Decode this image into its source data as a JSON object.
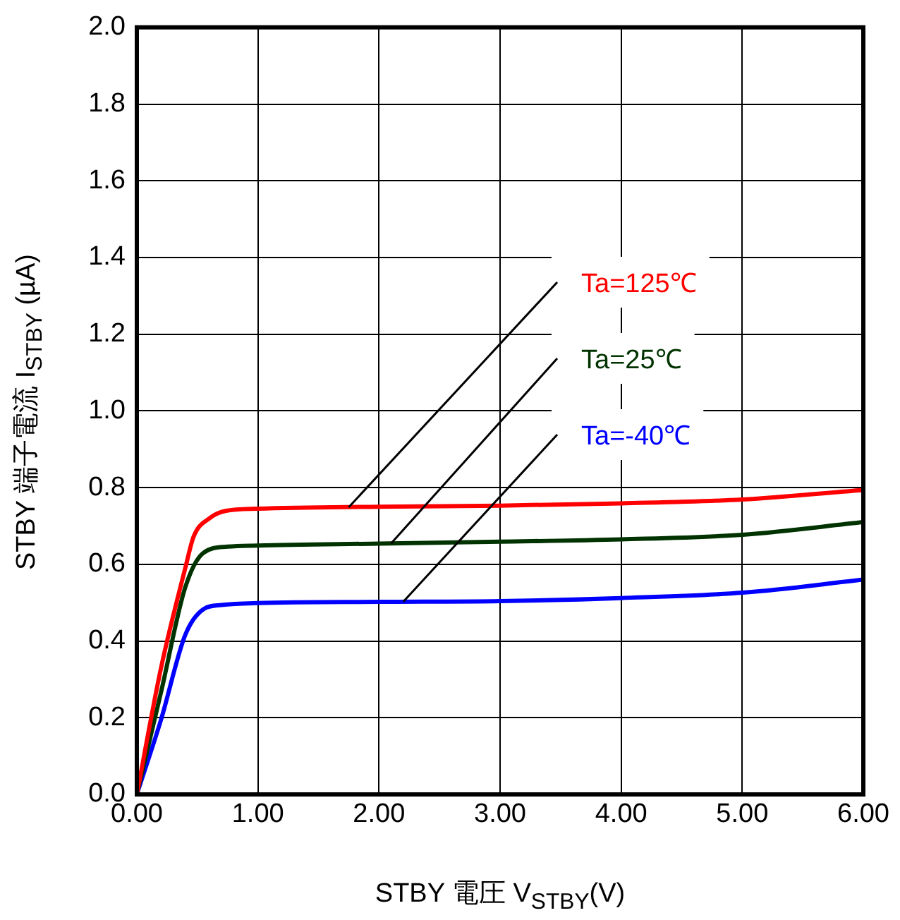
{
  "chart_data": {
    "type": "line",
    "xlabel": "STBY 電圧  V$_{STBY}$(V)",
    "ylabel": "STBY 端子電流 I$_{STBY}$ (µA)",
    "xlim": [
      0,
      6
    ],
    "ylim": [
      0,
      2
    ],
    "xticks": [
      {
        "value": 0,
        "label": "0.00"
      },
      {
        "value": 1,
        "label": "1.00"
      },
      {
        "value": 2,
        "label": "2.00"
      },
      {
        "value": 3,
        "label": "3.00"
      },
      {
        "value": 4,
        "label": "4.00"
      },
      {
        "value": 5,
        "label": "5.00"
      },
      {
        "value": 6,
        "label": "6.00"
      }
    ],
    "yticks": [
      {
        "value": 0,
        "label": "0.0"
      },
      {
        "value": 0.2,
        "label": "0.2"
      },
      {
        "value": 0.4,
        "label": "0.4"
      },
      {
        "value": 0.6,
        "label": "0.6"
      },
      {
        "value": 0.8,
        "label": "0.8"
      },
      {
        "value": 1,
        "label": "1.0"
      },
      {
        "value": 1.2,
        "label": "1.2"
      },
      {
        "value": 1.4,
        "label": "1.4"
      },
      {
        "value": 1.6,
        "label": "1.6"
      },
      {
        "value": 1.8,
        "label": "1.8"
      },
      {
        "value": 2,
        "label": "2.0"
      }
    ],
    "grid": true,
    "marker": "none",
    "line_style": "solid",
    "series": [
      {
        "name": "Ta=125℃",
        "color": "#ff0000",
        "x": [
          0,
          0.2,
          0.4,
          0.47,
          0.6,
          0.73,
          1,
          2,
          3,
          4,
          5,
          6
        ],
        "values": [
          0,
          0.33,
          0.59,
          0.673,
          0.72,
          0.739,
          0.745,
          0.75,
          0.753,
          0.759,
          0.769,
          0.794
        ]
      },
      {
        "name": "Ta=25℃",
        "color": "#003300",
        "x": [
          0,
          0.2,
          0.4,
          0.55,
          0.75,
          1,
          2,
          3,
          4,
          5,
          6
        ],
        "values": [
          0,
          0.267,
          0.54,
          0.63,
          0.646,
          0.649,
          0.654,
          0.659,
          0.665,
          0.677,
          0.71
        ]
      },
      {
        "name": "Ta=-40℃",
        "color": "#0000ff",
        "x": [
          0,
          0.2,
          0.4,
          0.55,
          0.7,
          1,
          2,
          3,
          4,
          5,
          6
        ],
        "values": [
          0,
          0.195,
          0.416,
          0.483,
          0.494,
          0.499,
          0.502,
          0.504,
          0.512,
          0.526,
          0.56
        ]
      }
    ]
  }
}
